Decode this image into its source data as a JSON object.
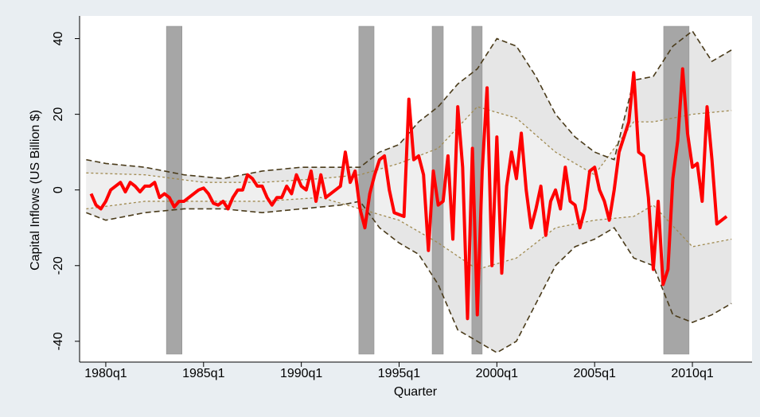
{
  "chart_data": {
    "type": "line",
    "y_label": "Capital Inflows (US Billion $)",
    "x_label": "Quarter",
    "xlim": [
      1978.66,
      2013.05
    ],
    "ylim": [
      -45.5,
      46
    ],
    "xticks": [
      {
        "value": 1980,
        "label": "1980q1"
      },
      {
        "value": 1985,
        "label": "1985q1"
      },
      {
        "value": 1990,
        "label": "1990q1"
      },
      {
        "value": 1995,
        "label": "1995q1"
      },
      {
        "value": 2000,
        "label": "2000q1"
      },
      {
        "value": 2005,
        "label": "2005q1"
      },
      {
        "value": 2010,
        "label": "2010q1"
      }
    ],
    "yticks": [
      -40,
      -20,
      0,
      20,
      40
    ],
    "color": "#ff0000",
    "x": [
      1979.25,
      1979.5,
      1979.75,
      1980,
      1980.25,
      1980.5,
      1980.75,
      1981,
      1981.25,
      1981.5,
      1981.75,
      1982,
      1982.25,
      1982.5,
      1982.75,
      1983,
      1983.25,
      1983.5,
      1983.75,
      1984,
      1984.25,
      1984.5,
      1984.75,
      1985,
      1985.25,
      1985.5,
      1985.75,
      1986,
      1986.25,
      1986.5,
      1986.75,
      1987,
      1987.25,
      1987.5,
      1987.75,
      1988,
      1988.25,
      1988.5,
      1988.75,
      1989,
      1989.25,
      1989.5,
      1989.75,
      1990,
      1990.25,
      1990.5,
      1990.75,
      1991,
      1991.25,
      1991.5,
      1991.75,
      1992,
      1992.25,
      1992.5,
      1992.75,
      1993,
      1993.25,
      1993.5,
      1993.75,
      1994,
      1994.25,
      1994.5,
      1994.75,
      1995,
      1995.25,
      1995.5,
      1995.75,
      1996,
      1996.25,
      1996.5,
      1996.75,
      1997,
      1997.25,
      1997.5,
      1997.75,
      1998,
      1998.25,
      1998.5,
      1998.75,
      1999,
      1999.25,
      1999.5,
      1999.75,
      2000,
      2000.25,
      2000.5,
      2000.75,
      2001,
      2001.25,
      2001.5,
      2001.75,
      2002,
      2002.25,
      2002.5,
      2002.75,
      2003,
      2003.25,
      2003.5,
      2003.75,
      2004,
      2004.25,
      2004.5,
      2004.75,
      2005,
      2005.25,
      2005.5,
      2005.75,
      2006,
      2006.25,
      2006.5,
      2006.75,
      2007,
      2007.25,
      2007.5,
      2007.75,
      2008,
      2008.25,
      2008.5,
      2008.75,
      2009,
      2009.25,
      2009.5,
      2009.75,
      2010,
      2010.25,
      2010.5,
      2010.75,
      2011,
      2011.25,
      2011.5,
      2011.75
    ],
    "values": [
      -1,
      -4,
      -5,
      -3,
      0,
      1,
      2,
      -0.5,
      2,
      1,
      -0.5,
      1,
      1,
      2,
      -2,
      -1,
      -2,
      -4.5,
      -3,
      -3,
      -2,
      -1,
      0,
      0.5,
      -1,
      -3.5,
      -4,
      -3,
      -5,
      -2,
      0,
      0,
      4,
      3,
      1,
      1,
      -2,
      -4,
      -2,
      -2,
      1,
      -1,
      4,
      1,
      0,
      5,
      -3,
      4,
      -2,
      -1,
      0,
      1,
      10,
      2,
      5,
      -5,
      -10,
      -1,
      4,
      8,
      9,
      0,
      -6,
      -6.5,
      -7,
      24,
      8,
      9,
      4,
      -16,
      5,
      -4,
      -3,
      9,
      -13,
      22,
      6,
      -34,
      11,
      -33,
      5,
      27,
      -20,
      14,
      -22,
      1,
      10,
      3,
      15,
      0,
      -10,
      -5,
      1,
      -12,
      -3,
      0,
      -5,
      6,
      -3,
      -4,
      -10,
      -5,
      5,
      6,
      0,
      -3,
      -8,
      0,
      10,
      14,
      18,
      31,
      10,
      9,
      -2,
      -21,
      -3,
      -25,
      -21,
      3,
      13,
      32,
      15,
      6,
      7,
      -3,
      22,
      8,
      -9,
      -8,
      -7
    ],
    "outer_band": {
      "color": "#4a3b1a",
      "fill": "#e6e6e6",
      "x": [
        1979,
        1980,
        1982,
        1984,
        1986,
        1988,
        1990,
        1992,
        1993,
        1994,
        1995,
        1996,
        1997,
        1998,
        1999,
        2000,
        2001,
        2002,
        2003,
        2004,
        2005,
        2006,
        2007,
        2008,
        2009,
        2010,
        2011,
        2012
      ],
      "upper": [
        8,
        7,
        6,
        4,
        3,
        5,
        6,
        6,
        6,
        10,
        12,
        18,
        22,
        28,
        32,
        40,
        38,
        30,
        20,
        14,
        10,
        8,
        29,
        30,
        38,
        42,
        34,
        37
      ],
      "lower": [
        -6,
        -8,
        -6,
        -5,
        -5,
        -6,
        -5,
        -4,
        -3,
        -10,
        -14,
        -17,
        -25,
        -37,
        -40,
        -43,
        -40,
        -30,
        -20,
        -15,
        -13,
        -10,
        -18,
        -20,
        -33,
        -35,
        -33,
        -30
      ]
    },
    "inner_band": {
      "color": "#a08a50",
      "fill": "#efefef",
      "x": [
        1979,
        1982,
        1985,
        1988,
        1991,
        1993,
        1995,
        1997,
        1999,
        2001,
        2003,
        2005,
        2007,
        2008,
        2010,
        2012
      ],
      "upper": [
        4.5,
        4,
        2,
        2,
        3,
        4,
        7,
        11,
        22,
        19,
        10,
        4,
        18,
        18,
        20,
        21
      ],
      "lower": [
        -5,
        -3,
        -3,
        -3,
        -2,
        -5,
        -8,
        -14,
        -21,
        -18,
        -10,
        -8,
        -7,
        -4,
        -15,
        -13
      ]
    },
    "shaded_periods": [
      [
        1983.1,
        1983.9
      ],
      [
        1992.94,
        1993.72
      ],
      [
        1996.69,
        1997.26
      ],
      [
        1998.72,
        1999.25
      ],
      [
        2008.53,
        2009.83
      ]
    ],
    "shade_color": "#a6a6a6"
  }
}
